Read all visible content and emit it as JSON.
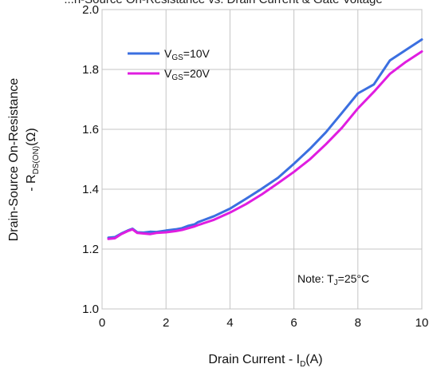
{
  "chart_data": {
    "type": "line",
    "title_fragment": "...n-Source On-Resistance vs. Drain Current & Gate Voltage",
    "xlabel_main": "Drain Current - I",
    "xlabel_sub": "D",
    "xlabel_unit": "(A)",
    "ylabel_line1": "Drain-Source On-Resistance",
    "ylabel_line2_main": "- R",
    "ylabel_line2_sub": "DS(ON)",
    "ylabel_line2_unit": "(Ω)",
    "xlim": [
      0,
      10
    ],
    "ylim": [
      1.0,
      2.0
    ],
    "x_ticks": [
      "0",
      "2",
      "4",
      "6",
      "8",
      "10"
    ],
    "y_ticks": [
      "1.0",
      "1.2",
      "1.4",
      "1.6",
      "1.8",
      "2.0"
    ],
    "grid": true,
    "legend_position": "top-left",
    "note_main": "Note: T",
    "note_sub": "J",
    "note_value": "=25°C",
    "series": [
      {
        "name_main": "V",
        "name_sub": "GS",
        "name_value": "=10V",
        "color": "#3b6fe0",
        "x": [
          0.2,
          0.4,
          0.6,
          0.8,
          0.95,
          1.1,
          1.3,
          1.5,
          1.7,
          2.0,
          2.3,
          2.5,
          2.7,
          2.9,
          3.0,
          3.5,
          4.0,
          4.5,
          5.0,
          5.5,
          6.0,
          6.5,
          7.0,
          7.5,
          8.0,
          8.5,
          9.0,
          9.5,
          10.0
        ],
        "y": [
          1.238,
          1.24,
          1.252,
          1.262,
          1.268,
          1.256,
          1.255,
          1.258,
          1.257,
          1.262,
          1.266,
          1.27,
          1.278,
          1.283,
          1.29,
          1.31,
          1.335,
          1.368,
          1.402,
          1.438,
          1.485,
          1.535,
          1.59,
          1.655,
          1.72,
          1.75,
          1.83,
          1.865,
          1.9
        ]
      },
      {
        "name_main": "V",
        "name_sub": "GS",
        "name_value": "=20V",
        "color": "#e01de0",
        "x": [
          0.2,
          0.4,
          0.6,
          0.8,
          0.95,
          1.1,
          1.3,
          1.5,
          1.7,
          2.0,
          2.3,
          2.5,
          2.7,
          2.9,
          3.0,
          3.5,
          4.0,
          4.5,
          5.0,
          5.5,
          6.0,
          6.5,
          7.0,
          7.5,
          8.0,
          8.5,
          9.0,
          9.5,
          10.0
        ],
        "y": [
          1.234,
          1.236,
          1.25,
          1.26,
          1.266,
          1.254,
          1.252,
          1.25,
          1.254,
          1.256,
          1.26,
          1.264,
          1.27,
          1.276,
          1.28,
          1.298,
          1.322,
          1.35,
          1.383,
          1.42,
          1.458,
          1.5,
          1.55,
          1.605,
          1.67,
          1.725,
          1.785,
          1.825,
          1.86
        ]
      }
    ]
  }
}
